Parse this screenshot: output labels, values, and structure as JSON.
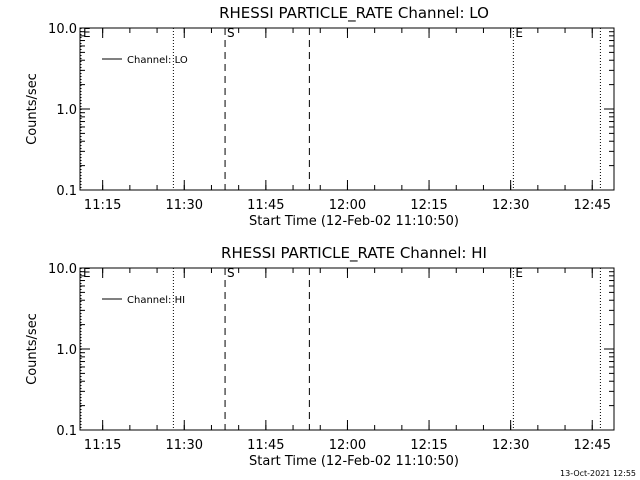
{
  "chart_data": [
    {
      "type": "line",
      "title": "RHESSI PARTICLE_RATE Channel: LO",
      "xlabel": "Start Time (12-Feb-02 11:10:50)",
      "ylabel": "Counts/sec",
      "y_scale": "log",
      "ylim": [
        0.1,
        10.0
      ],
      "y_ticks": [
        "0.1",
        "1.0",
        "10.0"
      ],
      "xlim": [
        "11:10:50",
        "12:49:00"
      ],
      "x_ticks": [
        "11:15",
        "11:30",
        "11:45",
        "12:00",
        "12:15",
        "12:30",
        "12:45"
      ],
      "legend": {
        "position": "top-left",
        "entries": [
          "Channel: LO"
        ]
      },
      "series": [
        {
          "name": "Channel: LO",
          "points": []
        }
      ],
      "markers": [
        {
          "time": "11:10:50",
          "style": "dotted",
          "label": "E"
        },
        {
          "time": "11:28:00",
          "style": "dotted",
          "label": ""
        },
        {
          "time": "11:37:30",
          "style": "dashed",
          "label": "S"
        },
        {
          "time": "11:53:00",
          "style": "dashed",
          "label": ""
        },
        {
          "time": "12:30:30",
          "style": "dotted",
          "label": "E"
        },
        {
          "time": "12:46:30",
          "style": "dotted",
          "label": ""
        }
      ]
    },
    {
      "type": "line",
      "title": "RHESSI PARTICLE_RATE Channel: HI",
      "xlabel": "Start Time (12-Feb-02 11:10:50)",
      "ylabel": "Counts/sec",
      "y_scale": "log",
      "ylim": [
        0.1,
        10.0
      ],
      "y_ticks": [
        "0.1",
        "1.0",
        "10.0"
      ],
      "xlim": [
        "11:10:50",
        "12:49:00"
      ],
      "x_ticks": [
        "11:15",
        "11:30",
        "11:45",
        "12:00",
        "12:15",
        "12:30",
        "12:45"
      ],
      "legend": {
        "position": "top-left",
        "entries": [
          "Channel: HI"
        ]
      },
      "series": [
        {
          "name": "Channel: HI",
          "points": []
        }
      ],
      "markers": [
        {
          "time": "11:10:50",
          "style": "dotted",
          "label": "E"
        },
        {
          "time": "11:28:00",
          "style": "dotted",
          "label": ""
        },
        {
          "time": "11:37:30",
          "style": "dashed",
          "label": "S"
        },
        {
          "time": "11:53:00",
          "style": "dashed",
          "label": ""
        },
        {
          "time": "12:30:30",
          "style": "dotted",
          "label": "E"
        },
        {
          "time": "12:46:30",
          "style": "dotted",
          "label": ""
        }
      ]
    }
  ],
  "footer": {
    "timestamp": "13-Oct-2021 12:55"
  }
}
